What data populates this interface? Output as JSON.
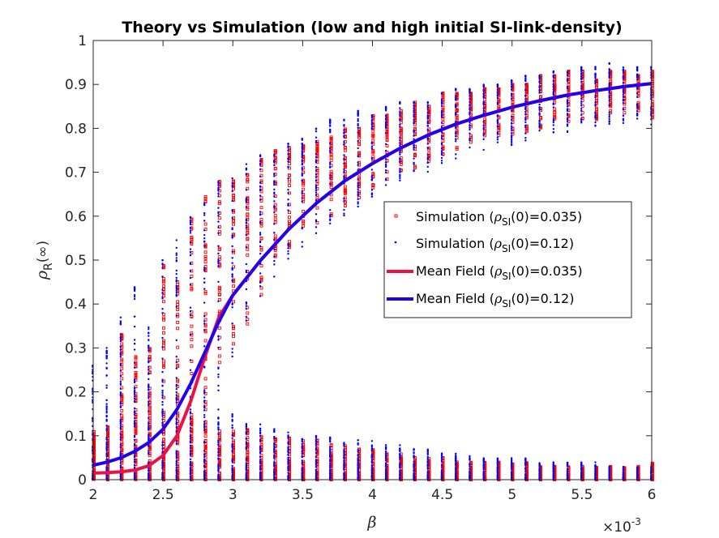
{
  "chart_data": {
    "type": "scatter",
    "title": "Theory vs Simulation (low and high initial SI-link-density)",
    "xlabel": "β",
    "ylabel_base": "ρ",
    "ylabel_sub": "R",
    "ylabel_suffix": "(∞)",
    "x_multiplier_base": "×10",
    "x_multiplier_exp": "-3",
    "xlim": [
      2,
      6
    ],
    "ylim": [
      0,
      1
    ],
    "xticks": [
      2,
      2.5,
      3,
      3.5,
      4,
      4.5,
      5,
      5.5,
      6
    ],
    "xtick_labels": [
      "2",
      "2.5",
      "3",
      "3.5",
      "4",
      "4.5",
      "5",
      "5.5",
      "6"
    ],
    "yticks": [
      0,
      0.1,
      0.2,
      0.3,
      0.4,
      0.5,
      0.6,
      0.7,
      0.8,
      0.9,
      1
    ],
    "ytick_labels": [
      "0",
      "0.1",
      "0.2",
      "0.3",
      "0.4",
      "0.5",
      "0.6",
      "0.7",
      "0.8",
      "0.9",
      "1"
    ],
    "grid": false,
    "legend_position": "right",
    "series": [
      {
        "kind": "scatter",
        "marker": "square",
        "color": "#ff0000",
        "legend_prefix": "Simulation (",
        "legend_rho": "ρ",
        "legend_sub": "SI",
        "legend_suffix": "(0)=0.035)",
        "x": [
          2.0,
          2.1,
          2.2,
          2.3,
          2.4,
          2.5,
          2.6,
          2.7,
          2.8,
          2.9,
          3.0,
          3.1,
          3.2,
          3.3,
          3.4,
          3.5,
          3.6,
          3.7,
          3.8,
          3.9,
          4.0,
          4.1,
          4.2,
          4.3,
          4.4,
          4.5,
          4.6,
          4.7,
          4.8,
          4.9,
          5.0,
          5.1,
          5.2,
          5.3,
          5.4,
          5.5,
          5.6,
          5.7,
          5.8,
          5.9,
          6.0
        ],
        "y_upper_max": [
          0.11,
          0.12,
          0.33,
          0.28,
          0.3,
          0.49,
          0.45,
          0.6,
          0.65,
          0.68,
          0.68,
          0.7,
          0.73,
          0.75,
          0.76,
          0.76,
          0.77,
          0.78,
          0.8,
          0.8,
          0.83,
          0.83,
          0.84,
          0.86,
          0.85,
          0.88,
          0.88,
          0.88,
          0.89,
          0.89,
          0.9,
          0.9,
          0.92,
          0.92,
          0.93,
          0.93,
          0.91,
          0.93,
          0.93,
          0.92,
          0.93
        ],
        "y_upper_min": [
          0.0,
          0.0,
          0.0,
          0.0,
          0.0,
          0.0,
          0.0,
          0.05,
          0.15,
          0.25,
          0.3,
          0.35,
          0.42,
          0.5,
          0.52,
          0.55,
          0.58,
          0.6,
          0.62,
          0.64,
          0.66,
          0.68,
          0.7,
          0.71,
          0.72,
          0.74,
          0.75,
          0.76,
          0.77,
          0.78,
          0.78,
          0.79,
          0.8,
          0.8,
          0.81,
          0.82,
          0.82,
          0.83,
          0.83,
          0.84,
          0.8
        ],
        "y_lower_max": [
          0.1,
          0.12,
          0.2,
          0.18,
          0.17,
          0.16,
          0.15,
          0.14,
          0.14,
          0.13,
          0.12,
          0.12,
          0.11,
          0.1,
          0.1,
          0.09,
          0.09,
          0.08,
          0.08,
          0.07,
          0.07,
          0.06,
          0.06,
          0.05,
          0.05,
          0.05,
          0.04,
          0.04,
          0.04,
          0.04,
          0.04,
          0.04,
          0.03,
          0.03,
          0.03,
          0.03,
          0.03,
          0.03,
          0.03,
          0.03,
          0.04
        ]
      },
      {
        "kind": "scatter",
        "marker": "dot",
        "color": "#0000ff",
        "legend_prefix": "Simulation (",
        "legend_rho": "ρ",
        "legend_sub": "SI",
        "legend_suffix": "(0)=0.12)",
        "x": [
          2.0,
          2.1,
          2.2,
          2.3,
          2.4,
          2.5,
          2.6,
          2.7,
          2.8,
          2.9,
          3.0,
          3.1,
          3.2,
          3.3,
          3.4,
          3.5,
          3.6,
          3.7,
          3.8,
          3.9,
          4.0,
          4.1,
          4.2,
          4.3,
          4.4,
          4.5,
          4.6,
          4.7,
          4.8,
          4.9,
          5.0,
          5.1,
          5.2,
          5.3,
          5.4,
          5.5,
          5.6,
          5.7,
          5.8,
          5.9,
          6.0
        ],
        "y_upper_max": [
          0.26,
          0.3,
          0.37,
          0.44,
          0.36,
          0.5,
          0.55,
          0.6,
          0.63,
          0.68,
          0.69,
          0.72,
          0.74,
          0.74,
          0.77,
          0.78,
          0.8,
          0.82,
          0.82,
          0.84,
          0.83,
          0.85,
          0.86,
          0.86,
          0.86,
          0.88,
          0.89,
          0.89,
          0.9,
          0.9,
          0.91,
          0.92,
          0.92,
          0.93,
          0.93,
          0.94,
          0.94,
          0.95,
          0.94,
          0.94,
          0.94
        ],
        "y_upper_min": [
          0.0,
          0.0,
          0.0,
          0.0,
          0.0,
          0.0,
          0.0,
          0.02,
          0.1,
          0.2,
          0.28,
          0.35,
          0.4,
          0.46,
          0.5,
          0.52,
          0.56,
          0.58,
          0.6,
          0.62,
          0.64,
          0.66,
          0.68,
          0.69,
          0.7,
          0.72,
          0.73,
          0.74,
          0.75,
          0.76,
          0.76,
          0.77,
          0.78,
          0.78,
          0.79,
          0.8,
          0.8,
          0.81,
          0.81,
          0.82,
          0.8
        ],
        "y_lower_max": [
          0.14,
          0.17,
          0.2,
          0.22,
          0.24,
          0.24,
          0.22,
          0.2,
          0.18,
          0.16,
          0.15,
          0.14,
          0.13,
          0.12,
          0.11,
          0.1,
          0.1,
          0.1,
          0.09,
          0.09,
          0.09,
          0.08,
          0.08,
          0.07,
          0.07,
          0.06,
          0.06,
          0.06,
          0.05,
          0.05,
          0.05,
          0.05,
          0.04,
          0.04,
          0.04,
          0.04,
          0.04,
          0.03,
          0.03,
          0.03,
          0.03
        ]
      },
      {
        "kind": "line",
        "color": "#ee1144",
        "legend_prefix": "Mean Field (",
        "legend_rho": "ρ",
        "legend_sub": "SI",
        "legend_suffix": "(0)=0.035)",
        "x": [
          2.0,
          2.1,
          2.2,
          2.3,
          2.4,
          2.5,
          2.6,
          2.7,
          2.8,
          2.9,
          3.0,
          3.2,
          3.4,
          3.6,
          3.8,
          4.0,
          4.2,
          4.4,
          4.6,
          4.8,
          5.0,
          5.2,
          5.4,
          5.6,
          5.8,
          6.0
        ],
        "y": [
          0.015,
          0.016,
          0.018,
          0.022,
          0.032,
          0.055,
          0.1,
          0.18,
          0.28,
          0.37,
          0.42,
          0.5,
          0.57,
          0.63,
          0.68,
          0.72,
          0.755,
          0.785,
          0.81,
          0.83,
          0.848,
          0.863,
          0.876,
          0.886,
          0.895,
          0.902
        ]
      },
      {
        "kind": "line",
        "color": "#2200ee",
        "legend_prefix": "Mean Field (",
        "legend_rho": "ρ",
        "legend_sub": "SI",
        "legend_suffix": "(0)=0.12)",
        "x": [
          2.0,
          2.1,
          2.2,
          2.3,
          2.4,
          2.5,
          2.6,
          2.7,
          2.8,
          2.9,
          3.0,
          3.2,
          3.4,
          3.6,
          3.8,
          4.0,
          4.2,
          4.4,
          4.6,
          4.8,
          5.0,
          5.2,
          5.4,
          5.6,
          5.8,
          6.0
        ],
        "y": [
          0.033,
          0.04,
          0.05,
          0.065,
          0.085,
          0.115,
          0.16,
          0.22,
          0.29,
          0.36,
          0.42,
          0.5,
          0.57,
          0.63,
          0.68,
          0.72,
          0.755,
          0.785,
          0.81,
          0.83,
          0.848,
          0.863,
          0.876,
          0.886,
          0.895,
          0.902
        ]
      }
    ]
  }
}
